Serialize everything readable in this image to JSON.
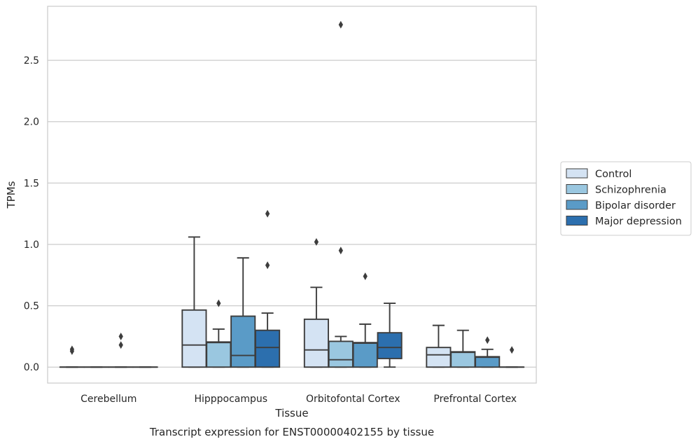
{
  "chart_data": {
    "type": "box",
    "title": "Transcript expression for ENST00000402155 by tissue",
    "xlabel": "Tissue",
    "ylabel": "TPMs",
    "ylim": [
      -0.13,
      2.94
    ],
    "yticks": [
      0.0,
      0.5,
      1.0,
      1.5,
      2.0,
      2.5
    ],
    "ytick_labels": [
      "0.0",
      "0.5",
      "1.0",
      "1.5",
      "2.0",
      "2.5"
    ],
    "grid": "horizontal",
    "legend": "right",
    "categories": [
      "Cerebellum",
      "Hipppocampus",
      "Orbitofontal Cortex",
      "Prefrontal Cortex"
    ],
    "series": [
      {
        "name": "Control",
        "color": "#d4e3f3",
        "boxes": [
          {
            "q1": 0,
            "median": 0,
            "q3": 0,
            "whisker_low": 0,
            "whisker_high": 0,
            "outliers": [
              0.13,
              0.145
            ]
          },
          {
            "q1": 0,
            "median": 0.18,
            "q3": 0.465,
            "whisker_low": 0,
            "whisker_high": 1.06,
            "outliers": []
          },
          {
            "q1": 0,
            "median": 0.14,
            "q3": 0.39,
            "whisker_low": 0,
            "whisker_high": 0.65,
            "outliers": [
              1.02
            ]
          },
          {
            "q1": 0,
            "median": 0.1,
            "q3": 0.16,
            "whisker_low": 0,
            "whisker_high": 0.34,
            "outliers": []
          }
        ]
      },
      {
        "name": "Schizophrenia",
        "color": "#9ac7e0",
        "boxes": [
          {
            "q1": 0,
            "median": 0,
            "q3": 0,
            "whisker_low": 0,
            "whisker_high": 0,
            "outliers": []
          },
          {
            "q1": 0,
            "median": 0.2,
            "q3": 0.205,
            "whisker_low": 0,
            "whisker_high": 0.31,
            "outliers": [
              0.52
            ]
          },
          {
            "q1": 0,
            "median": 0.06,
            "q3": 0.21,
            "whisker_low": 0,
            "whisker_high": 0.25,
            "outliers": [
              0.95,
              2.79
            ]
          },
          {
            "q1": 0,
            "median": 0.12,
            "q3": 0.125,
            "whisker_low": 0,
            "whisker_high": 0.3,
            "outliers": []
          }
        ]
      },
      {
        "name": "Bipolar disorder",
        "color": "#5a9bc7",
        "boxes": [
          {
            "q1": 0,
            "median": 0,
            "q3": 0,
            "whisker_low": 0,
            "whisker_high": 0,
            "outliers": [
              0.18,
              0.25
            ]
          },
          {
            "q1": 0,
            "median": 0.095,
            "q3": 0.415,
            "whisker_low": 0,
            "whisker_high": 0.89,
            "outliers": []
          },
          {
            "q1": 0,
            "median": 0.195,
            "q3": 0.2,
            "whisker_low": 0,
            "whisker_high": 0.35,
            "outliers": [
              0.74
            ]
          },
          {
            "q1": 0,
            "median": 0.08,
            "q3": 0.085,
            "whisker_low": 0,
            "whisker_high": 0.145,
            "outliers": [
              0.22
            ]
          }
        ]
      },
      {
        "name": "Major depression",
        "color": "#2c6fae",
        "boxes": [
          {
            "q1": 0,
            "median": 0,
            "q3": 0,
            "whisker_low": 0,
            "whisker_high": 0,
            "outliers": []
          },
          {
            "q1": 0,
            "median": 0.16,
            "q3": 0.3,
            "whisker_low": 0,
            "whisker_high": 0.44,
            "outliers": [
              0.83,
              1.25
            ]
          },
          {
            "q1": 0.07,
            "median": 0.16,
            "q3": 0.28,
            "whisker_low": 0,
            "whisker_high": 0.52,
            "outliers": []
          },
          {
            "q1": 0,
            "median": 0,
            "q3": 0,
            "whisker_low": 0,
            "whisker_high": 0,
            "outliers": [
              0.14
            ]
          }
        ]
      }
    ]
  }
}
